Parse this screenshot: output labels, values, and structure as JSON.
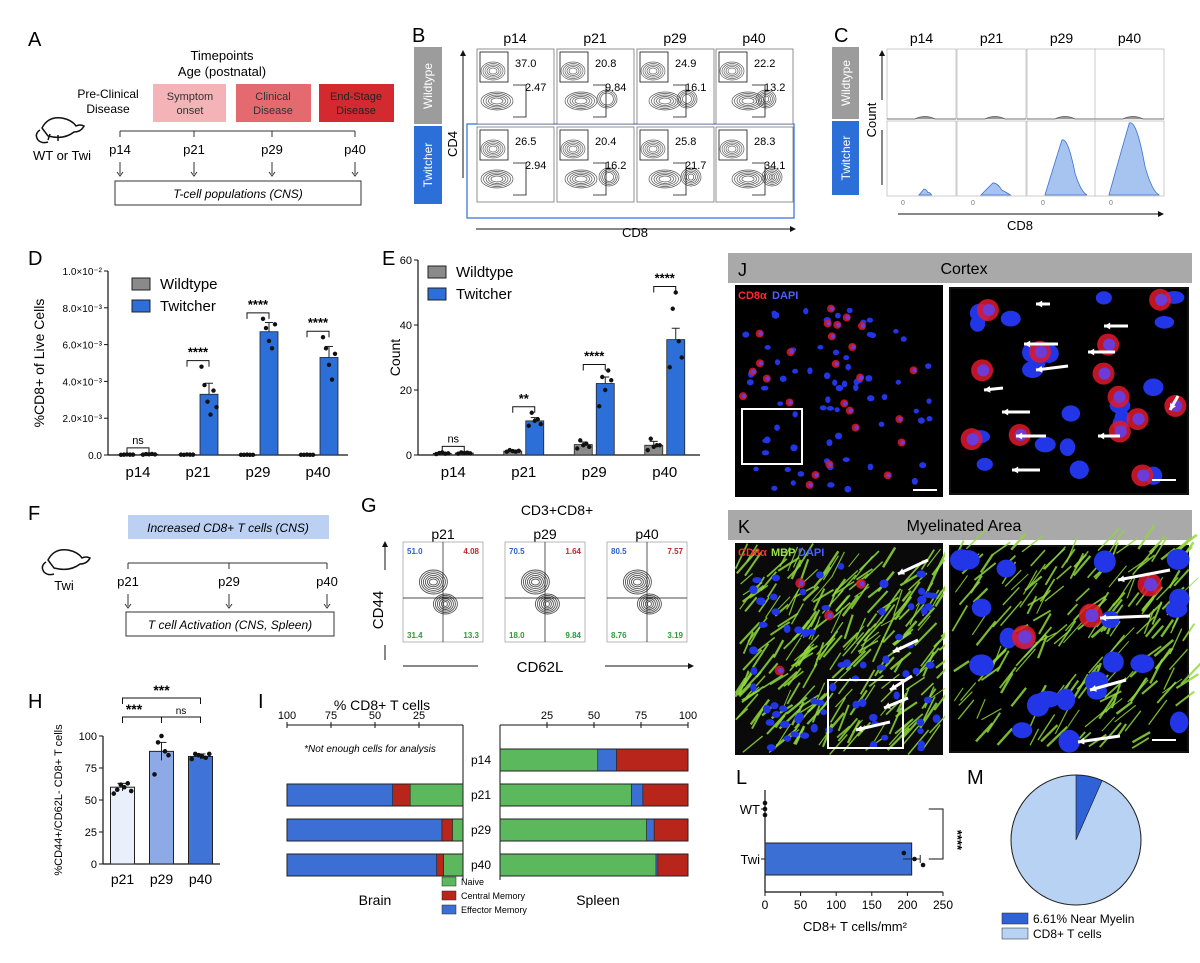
{
  "panels": {
    "A": {
      "letter": "A",
      "timepoints_title": [
        "Timepoints",
        "Age (postnatal)"
      ],
      "preclinical": [
        "Pre-Clinical",
        "Disease"
      ],
      "stages": [
        {
          "label": [
            "Symptom",
            "onset"
          ],
          "color": "#f4b4b7"
        },
        {
          "label": [
            "Clinical",
            "Disease"
          ],
          "color": "#e56a70"
        },
        {
          "label": [
            "End-Stage",
            "Disease"
          ],
          "color": "#d42a2f"
        }
      ],
      "mouse_label": "WT or Twi",
      "ages": [
        "p14",
        "p21",
        "p29",
        "p40"
      ],
      "box": "T-cell populations (CNS)"
    },
    "B": {
      "letter": "B",
      "ages": [
        "p14",
        "p21",
        "p29",
        "p40"
      ],
      "rows": [
        "Wildtype",
        "Twitcher"
      ],
      "ylabel": "CD4",
      "xlabel": "CD8",
      "wt_top": [
        "37.0",
        "20.8",
        "24.9",
        "22.2"
      ],
      "wt_bottom": [
        "2.47",
        "9.84",
        "16.1",
        "13.2"
      ],
      "twi_top": [
        "26.5",
        "20.4",
        "25.8",
        "28.3"
      ],
      "twi_bottom": [
        "2.94",
        "16.2",
        "21.7",
        "34.1"
      ],
      "row_colors": [
        "#9c9c9c",
        "#2c6fd8"
      ]
    },
    "C": {
      "letter": "C",
      "ages": [
        "p14",
        "p21",
        "p29",
        "p40"
      ],
      "rows": [
        "Wildtype",
        "Twitcher"
      ],
      "ylabel": "Count",
      "xlabel": "CD8"
    },
    "F": {
      "letter": "F",
      "banner": "Increased CD8+ T cells (CNS)",
      "mouse_label": "Twi",
      "ages": [
        "p21",
        "p29",
        "p40"
      ],
      "box": "T cell Activation (CNS, Spleen)"
    },
    "G": {
      "letter": "G",
      "title": "CD3+CD8+",
      "ages": [
        "p21",
        "p29",
        "p40"
      ],
      "ylabel": "CD44",
      "xlabel": "CD62L",
      "quadrants": [
        {
          "ul": "51.0",
          "ur": "4.08",
          "ll": "31.4",
          "lr": "13.3"
        },
        {
          "ul": "70.5",
          "ur": "1.64",
          "ll": "18.0",
          "lr": "9.84"
        },
        {
          "ul": "80.5",
          "ur": "7.57",
          "ll": "8.76",
          "lr": "3.19"
        }
      ],
      "colors": {
        "ul": "#2b5fd0",
        "ur": "#c0262c",
        "ll": "#2e9a3a",
        "lr": "#2e9a3a"
      }
    },
    "J": {
      "letter": "J",
      "title": "Cortex",
      "stain_red": "CD8α",
      "stain_blue": "DAPI"
    },
    "K": {
      "letter": "K",
      "title": "Myelinated Area",
      "stain_red": "CD8α",
      "stain_green": "MBP",
      "stain_blue": "DAPI"
    },
    "L": {
      "letter": "L"
    },
    "M": {
      "letter": "M"
    }
  },
  "chart_data": [
    {
      "panel": "D",
      "type": "bar",
      "categories": [
        "p14",
        "p21",
        "p29",
        "p40"
      ],
      "series": [
        {
          "name": "Wildtype",
          "values": [
            2e-05,
            2e-05,
            1e-05,
            1e-05
          ],
          "errors": [
            1e-05,
            1e-05,
            5e-06,
            5e-06
          ],
          "color": "#8a8a8a"
        },
        {
          "name": "Twitcher",
          "values": [
            4e-05,
            0.0033,
            0.0067,
            0.0053
          ],
          "errors": [
            2e-05,
            0.0006,
            0.0005,
            0.0006
          ],
          "color": "#2c6fd8"
        }
      ],
      "points": {
        "Wildtype": [
          [
            1e-05,
            2e-05,
            3e-05,
            2e-05,
            2e-05
          ],
          [
            2e-05,
            1e-05,
            3e-05,
            2e-05,
            2e-05
          ],
          [
            1e-05,
            1e-05,
            2e-05,
            1e-05,
            1e-05
          ],
          [
            1e-05,
            1e-05,
            2e-05,
            1e-05,
            1e-05
          ]
        ],
        "Twitcher": [
          [
            2e-05,
            5e-05,
            4e-05,
            6e-05,
            3e-05
          ],
          [
            0.0048,
            0.0038,
            0.0029,
            0.0022,
            0.0035,
            0.0026
          ],
          [
            0.0074,
            0.0069,
            0.0062,
            0.0058,
            0.0071
          ],
          [
            0.0064,
            0.0058,
            0.0049,
            0.0041,
            0.0055
          ]
        ]
      },
      "ylabel": "%CD8+ of Live Cells",
      "ylim": [
        0,
        0.01
      ],
      "yticks": [
        "0.0",
        "2.0×10⁻³",
        "4.0×10⁻³",
        "6.0×10⁻³",
        "8.0×10⁻³",
        "1.0×10⁻²"
      ],
      "significance": [
        "ns",
        "****",
        "****",
        "****"
      ],
      "legend": "top-left"
    },
    {
      "panel": "E",
      "type": "bar",
      "categories": [
        "p14",
        "p21",
        "p29",
        "p40"
      ],
      "series": [
        {
          "name": "Wildtype",
          "values": [
            0.5,
            1.2,
            3.2,
            3.0
          ],
          "errors": [
            0.2,
            0.3,
            0.8,
            1.2
          ],
          "color": "#8a8a8a"
        },
        {
          "name": "Twitcher",
          "values": [
            0.6,
            10.5,
            22,
            35.5
          ],
          "errors": [
            0.2,
            1.0,
            2.0,
            3.5
          ],
          "color": "#2c6fd8"
        }
      ],
      "points": {
        "Wildtype": [
          [
            0.3,
            0.6,
            0.8,
            0.4,
            0.5
          ],
          [
            1,
            1.5,
            1.2,
            1,
            1.3
          ],
          [
            2,
            4.5,
            3,
            3.5,
            2.5
          ],
          [
            1.5,
            5,
            2.5,
            3,
            3
          ]
        ],
        "Twitcher": [
          [
            0.4,
            0.8,
            0.6,
            0.7,
            0.5
          ],
          [
            9,
            13,
            10.5,
            11,
            9.5
          ],
          [
            15,
            24,
            20,
            26,
            23
          ],
          [
            27,
            45,
            50,
            35,
            30
          ]
        ]
      },
      "ylabel": "Count",
      "ylim": [
        0,
        60
      ],
      "yticks": [
        "0",
        "20",
        "40",
        "60"
      ],
      "significance": [
        "ns",
        "**",
        "****",
        "****"
      ],
      "legend": "top-left"
    },
    {
      "panel": "H",
      "type": "bar",
      "categories": [
        "p21",
        "p29",
        "p40"
      ],
      "values": [
        60,
        88,
        84
      ],
      "errors": [
        3,
        7,
        2
      ],
      "colors": [
        "#eaf0fb",
        "#8da9e6",
        "#3f74d6"
      ],
      "points": [
        [
          55,
          58,
          62,
          60,
          63,
          57
        ],
        [
          70,
          95,
          100,
          88,
          85
        ],
        [
          82,
          86,
          85,
          84,
          83,
          86
        ]
      ],
      "ylabel": "%CD44+/CD62L- CD8+ T cells",
      "ylim": [
        0,
        100
      ],
      "yticks": [
        "0",
        "25",
        "50",
        "75",
        "100"
      ],
      "comparisons": [
        {
          "from": "p21",
          "to": "p29",
          "label": "***"
        },
        {
          "from": "p29",
          "to": "p40",
          "label": "ns"
        },
        {
          "from": "p21",
          "to": "p40",
          "label": "***"
        }
      ]
    },
    {
      "panel": "I",
      "type": "bar",
      "orientation": "horizontal-stacked",
      "title": "% CD8+ T cells",
      "categories": [
        "p14",
        "p21",
        "p29",
        "p40"
      ],
      "brain": {
        "note": "*Not enough cells for analysis",
        "series": [
          {
            "name": "Effector Memory",
            "values": [
              null,
              60,
              88,
              85
            ],
            "color": "#3b6fd3"
          },
          {
            "name": "Central Memory",
            "values": [
              null,
              10,
              6,
              4
            ],
            "color": "#b8261b"
          },
          {
            "name": "Naive",
            "values": [
              null,
              30,
              6,
              11
            ],
            "color": "#5cb85c"
          }
        ],
        "xticks": [
          "100",
          "75",
          "50",
          "25"
        ],
        "label": "Brain"
      },
      "spleen": {
        "series": [
          {
            "name": "Naive",
            "values": [
              52,
              70,
              78,
              83
            ],
            "color": "#5cb85c"
          },
          {
            "name": "Effector Memory",
            "values": [
              10,
              6,
              4,
              1
            ],
            "color": "#3b6fd3"
          },
          {
            "name": "Central Memory",
            "values": [
              38,
              24,
              18,
              16
            ],
            "color": "#b8261b"
          }
        ],
        "xticks": [
          "25",
          "50",
          "75",
          "100"
        ],
        "label": "Spleen"
      },
      "legend": [
        "Naive",
        "Central Memory",
        "Effector Memory"
      ],
      "legend_colors": [
        "#5cb85c",
        "#b8261b",
        "#3b6fd3"
      ]
    },
    {
      "panel": "L",
      "type": "bar",
      "orientation": "horizontal",
      "categories": [
        "WT",
        "Twi"
      ],
      "values": [
        0,
        206
      ],
      "errors": [
        0,
        12
      ],
      "points": [
        [
          0,
          0,
          0
        ],
        [
          195,
          210,
          222
        ]
      ],
      "xlabel": "CD8+ T cells/mm²",
      "xlim": [
        0,
        250
      ],
      "xticks": [
        "0",
        "50",
        "100",
        "150",
        "200",
        "250"
      ],
      "significance": "****",
      "color": "#3b6fd3"
    },
    {
      "panel": "M",
      "type": "pie",
      "slices": [
        {
          "label": "6.61%  Near Myelin",
          "value": 6.61,
          "color": "#2f62d6"
        },
        {
          "label": "CD8+ T cells",
          "value": 93.39,
          "color": "#b8d2f3"
        }
      ],
      "legend": "bottom"
    }
  ]
}
